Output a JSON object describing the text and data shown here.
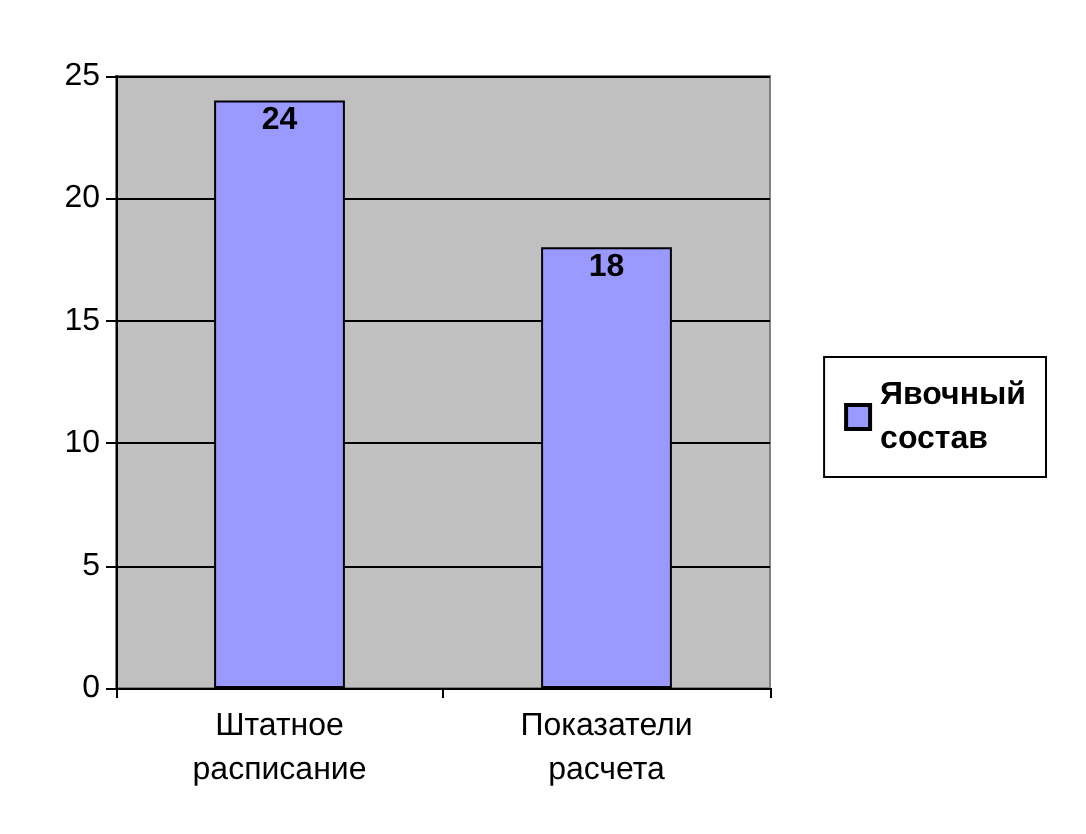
{
  "chart_data": {
    "type": "bar",
    "categories": [
      "Штатное расписание",
      "Показатели расчета"
    ],
    "series": [
      {
        "name": "Явочный состав",
        "color": "#9999ff",
        "values": [
          24,
          18
        ]
      }
    ],
    "ylim": [
      0,
      25
    ],
    "yticks": [
      0,
      5,
      10,
      15,
      20,
      25
    ],
    "grid": "y",
    "legend": "right",
    "data_labels": true
  }
}
